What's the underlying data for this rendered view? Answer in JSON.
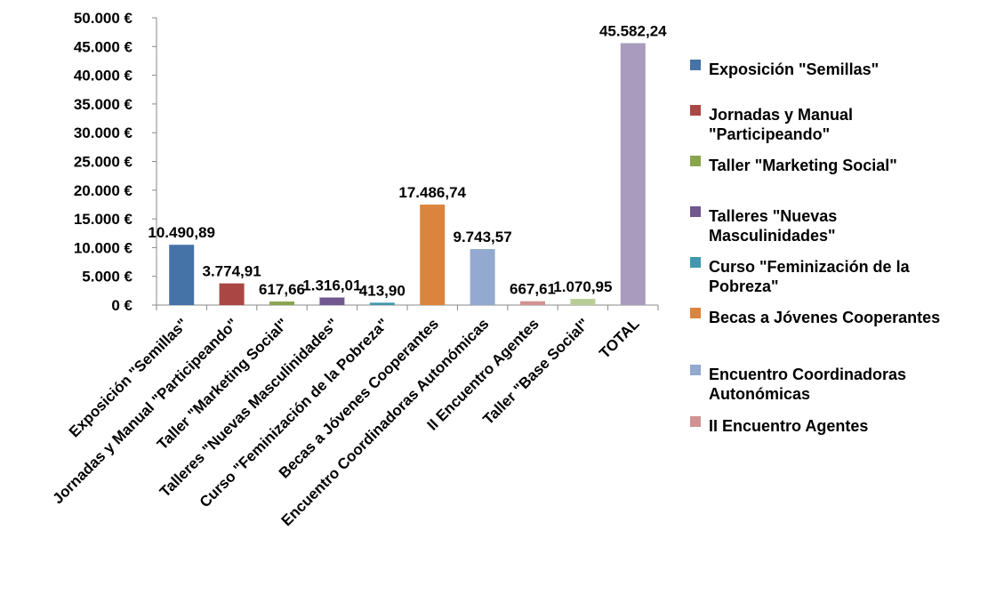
{
  "chart_data": {
    "type": "bar",
    "title": "",
    "xlabel": "",
    "ylabel": "",
    "ylim": [
      0,
      50000
    ],
    "y_tick_labels": [
      "0 €",
      "5.000 €",
      "10.000 €",
      "15.000 €",
      "20.000 €",
      "25.000 €",
      "30.000 €",
      "35.000 €",
      "40.000 €",
      "45.000 €",
      "50.000 €"
    ],
    "grid": false,
    "legend_position": "right",
    "categories": [
      "Exposición \"Semillas\"",
      "Jornadas y Manual \"Participeando\"",
      "Taller \"Marketing Social\"",
      "Talleres \"Nuevas Masculinidades\"",
      "Curso \"Feminización de la Pobreza\"",
      "Becas a Jóvenes Cooperantes",
      "Encuentro Coordinadoras Autonómicas",
      "II Encuentro Agentes",
      "Taller \"Base Social\"",
      "TOTAL"
    ],
    "values": [
      10490.89,
      3774.91,
      617.66,
      1316.01,
      413.9,
      17486.74,
      9743.57,
      667.61,
      1070.95,
      45582.24
    ],
    "data_labels": [
      "10.490,89",
      "3.774,91",
      "617,66",
      "1.316,01",
      "413,90",
      "17.486,74",
      "9.743,57",
      "667,61",
      "1.070,95",
      "45.582,24"
    ],
    "colors": [
      "#4572A7",
      "#AA4643",
      "#89A54E",
      "#71588F",
      "#4198AF",
      "#DB843D",
      "#93A9CF",
      "#D19392",
      "#B9CD96",
      "#A99BBD"
    ],
    "legend": [
      {
        "lines": [
          "Exposición  \"Semillas\""
        ],
        "color": "#4572A7"
      },
      {
        "lines": [
          "Jornadas y Manual",
          "\"Participeando\""
        ],
        "color": "#AA4643"
      },
      {
        "lines": [
          "Taller \"Marketing  Social\""
        ],
        "color": "#89A54E"
      },
      {
        "lines": [
          "Talleres \"Nuevas",
          "Masculinidades\""
        ],
        "color": "#71588F"
      },
      {
        "lines": [
          "Curso \"Feminización  de la",
          "Pobreza\""
        ],
        "color": "#4198AF"
      },
      {
        "lines": [
          "Becas a Jóvenes Cooperantes"
        ],
        "color": "#DB843D"
      },
      {
        "lines": [
          "Encuentro Coordinadoras",
          "Autonómicas"
        ],
        "color": "#93A9CF"
      },
      {
        "lines": [
          "II Encuentro Agentes"
        ],
        "color": "#D19392"
      }
    ]
  }
}
